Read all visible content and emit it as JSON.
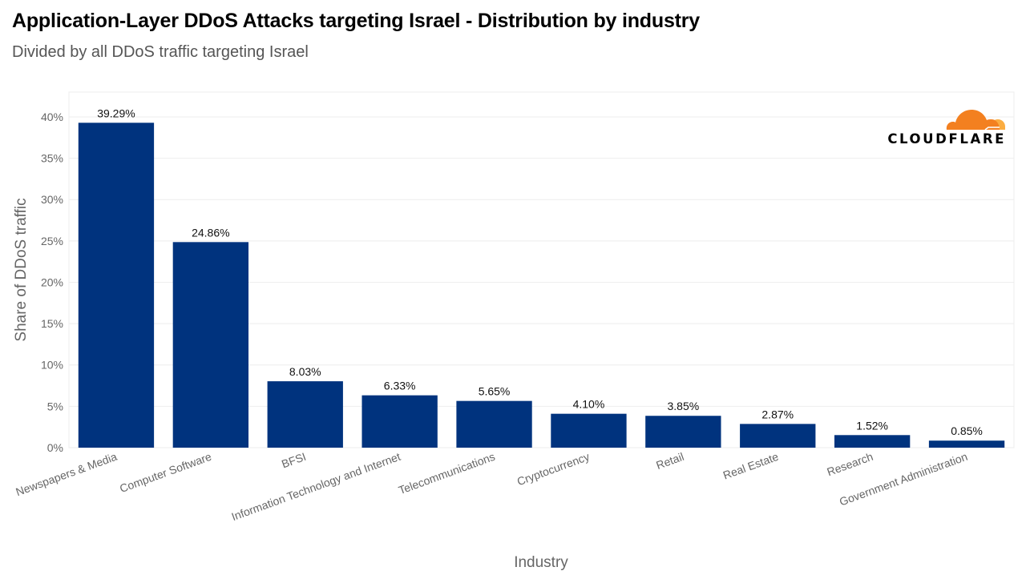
{
  "header": {
    "title": "Application-Layer DDoS Attacks targeting Israel - Distribution by industry",
    "subtitle": "Divided by all DDoS traffic targeting Israel"
  },
  "logo": {
    "text": "CLOUDFLARE",
    "icon": "cloud-icon",
    "colors": {
      "primary": "#F38020",
      "secondary": "#FBAD41"
    }
  },
  "chart_data": {
    "type": "bar",
    "title": "Application-Layer DDoS Attacks targeting Israel - Distribution by industry",
    "subtitle": "Divided by all DDoS traffic targeting Israel",
    "xlabel": "Industry",
    "ylabel": "Share of DDoS traffic",
    "ylim": [
      0,
      43
    ],
    "yticks": [
      0,
      5,
      10,
      15,
      20,
      25,
      30,
      35,
      40
    ],
    "ytick_labels": [
      "0%",
      "5%",
      "10%",
      "15%",
      "20%",
      "25%",
      "30%",
      "35%",
      "40%"
    ],
    "categories": [
      "Newspapers & Media",
      "Computer Software",
      "BFSI",
      "Information Technology and Internet",
      "Telecommunications",
      "Cryptocurrency",
      "Retail",
      "Real Estate",
      "Research",
      "Government Administration"
    ],
    "values": [
      39.29,
      24.86,
      8.03,
      6.33,
      5.65,
      4.1,
      3.85,
      2.87,
      1.52,
      0.85
    ],
    "value_labels": [
      "39.29%",
      "24.86%",
      "8.03%",
      "6.33%",
      "5.65%",
      "4.10%",
      "3.85%",
      "2.87%",
      "1.52%",
      "0.85%"
    ],
    "bar_color": "#00337E",
    "grid": true
  }
}
